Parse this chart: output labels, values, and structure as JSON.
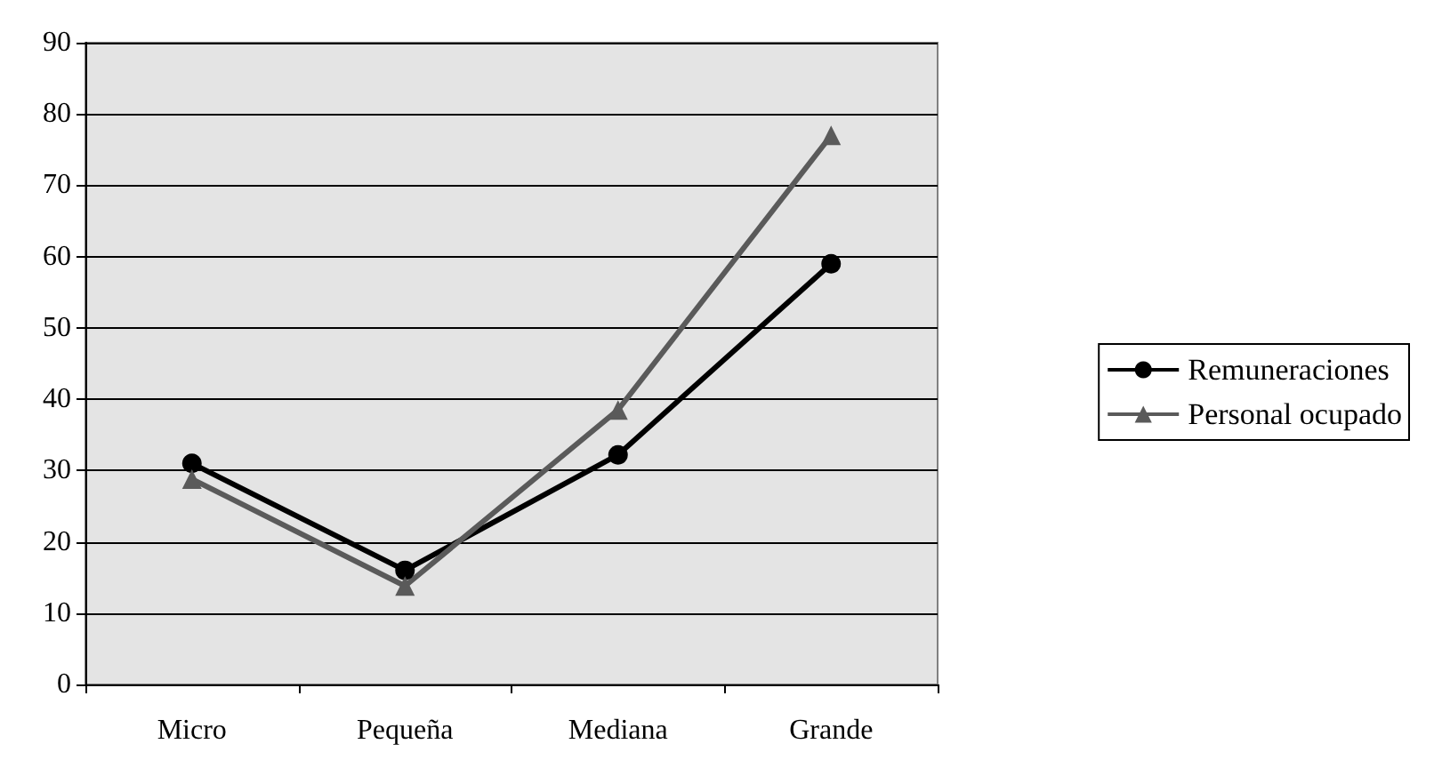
{
  "chart_data": {
    "type": "line",
    "categories": [
      "Micro",
      "Pequeña",
      "Mediana",
      "Grande"
    ],
    "series": [
      {
        "name": "Remuneraciones",
        "color": "#000000",
        "marker": "circle",
        "values": [
          31,
          16,
          32.2,
          59
        ]
      },
      {
        "name": "Personal ocupado",
        "color": "#5a5a5a",
        "marker": "triangle",
        "values": [
          28.8,
          13.8,
          38.5,
          77
        ]
      }
    ],
    "ylim": [
      0,
      90
    ],
    "yticks": [
      0,
      10,
      20,
      30,
      40,
      50,
      60,
      70,
      80,
      90
    ],
    "grid": "y",
    "legend": "right"
  }
}
